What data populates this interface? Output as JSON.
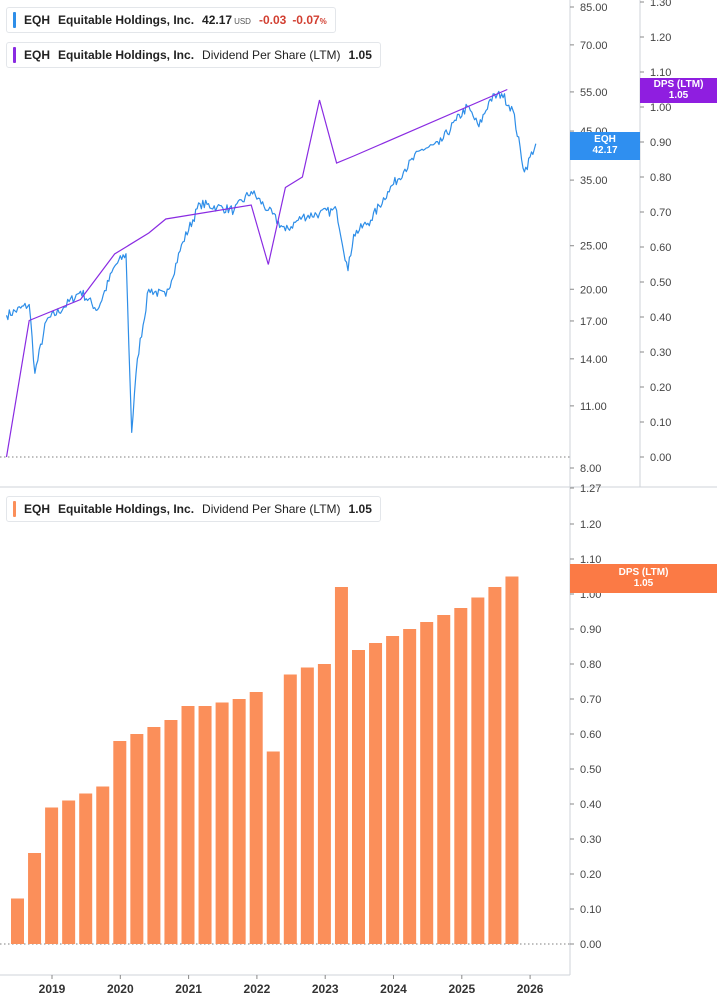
{
  "colors": {
    "price": "#2e8ee8",
    "dps_line": "#8a2be2",
    "bars": "#fb8f5a",
    "price_tag": "#2f8ff0",
    "dps_tag_top": "#8f1ee0",
    "dps_tag_bottom": "#fb7a45"
  },
  "legend_price": {
    "ticker": "EQH",
    "name": "Equitable Holdings, Inc.",
    "price": "42.17",
    "currency": "USD",
    "change": "-0.03",
    "change_pct": "-0.07",
    "pct_symbol": "%"
  },
  "legend_dps_top": {
    "ticker": "EQH",
    "name": "Equitable Holdings, Inc.",
    "series": "Dividend Per Share (LTM)",
    "value": "1.05"
  },
  "legend_dps_bottom": {
    "ticker": "EQH",
    "name": "Equitable Holdings, Inc.",
    "series": "Dividend Per Share (LTM)",
    "value": "1.05"
  },
  "tags": {
    "price_ticker": "EQH",
    "price_value": "42.17",
    "dps_top_label": "DPS (LTM)",
    "dps_top_value": "1.05",
    "dps_bottom_label": "DPS (LTM)",
    "dps_bottom_value": "1.05"
  },
  "chart_data": [
    {
      "type": "line",
      "title": "EQH Equitable Holdings, Inc.",
      "scale": "log",
      "ylim": [
        8,
        85
      ],
      "y_ticks": [
        "85.00",
        "70.00",
        "55.00",
        "45.00",
        "35.00",
        "25.00",
        "20.00",
        "17.00",
        "14.00",
        "11.00",
        "8.00"
      ],
      "x_ticks": [
        "2019",
        "2020",
        "2021",
        "2022",
        "2023",
        "2024",
        "2025",
        "2026"
      ],
      "series": [
        {
          "name": "EQH",
          "x": [
            "2018-05",
            "2018-09",
            "2018-10",
            "2018-12",
            "2019-03",
            "2019-06",
            "2019-09",
            "2019-12",
            "2020-02",
            "2020-03",
            "2020-04",
            "2020-06",
            "2020-09",
            "2020-12",
            "2021-03",
            "2021-06",
            "2021-09",
            "2021-12",
            "2022-03",
            "2022-06",
            "2022-09",
            "2022-12",
            "2023-03",
            "2023-05",
            "2023-06",
            "2023-09",
            "2023-12",
            "2024-03",
            "2024-06",
            "2024-09",
            "2024-12",
            "2025-02",
            "2025-04",
            "2025-06",
            "2025-08",
            "2025-10",
            "2025-12",
            "2026-02"
          ],
          "y": [
            17.5,
            18.5,
            13.0,
            17.0,
            18.2,
            19.8,
            18.0,
            22.5,
            24.0,
            9.6,
            14.0,
            20.0,
            19.3,
            25.5,
            31.0,
            30.5,
            30.0,
            33.0,
            30.0,
            27.0,
            29.0,
            29.5,
            30.0,
            22.0,
            26.5,
            28.5,
            33.0,
            37.0,
            41.0,
            42.0,
            47.5,
            51.0,
            46.0,
            53.0,
            54.5,
            50.0,
            36.5,
            42.17
          ]
        }
      ],
      "secondary_axis": {
        "ylim": [
          0.0,
          1.3
        ],
        "y_ticks": [
          "1.30",
          "1.20",
          "1.10",
          "1.00",
          "0.90",
          "0.80",
          "0.70",
          "0.60",
          "0.50",
          "0.40",
          "0.30",
          "0.20",
          "0.10",
          "0.00"
        ],
        "series": [
          {
            "name": "Dividend Per Share (LTM)",
            "x": [
              "2018-05",
              "2018-09",
              "2019-06",
              "2019-12",
              "2020-06",
              "2020-09",
              "2021-12",
              "2022-03",
              "2022-06",
              "2022-09",
              "2022-12",
              "2023-03",
              "2023-06",
              "2025-09"
            ],
            "y": [
              0.0,
              0.39,
              0.45,
              0.58,
              0.64,
              0.68,
              0.72,
              0.55,
              0.77,
              0.8,
              1.02,
              0.84,
              0.86,
              1.05
            ]
          }
        ]
      }
    },
    {
      "type": "bar",
      "title": "EQH Equitable Holdings, Inc. Dividend Per Share (LTM)",
      "ylim": [
        0.0,
        1.27
      ],
      "y_ticks": [
        "1.27",
        "1.20",
        "1.10",
        "1.00",
        "0.90",
        "0.80",
        "0.70",
        "0.60",
        "0.50",
        "0.40",
        "0.30",
        "0.20",
        "0.10",
        "0.00"
      ],
      "x_ticks": [
        "2019",
        "2020",
        "2021",
        "2022",
        "2023",
        "2024",
        "2025",
        "2026"
      ],
      "categories": [
        "Q2 2018",
        "Q3 2018",
        "Q4 2018",
        "Q1 2019",
        "Q2 2019",
        "Q3 2019",
        "Q4 2019",
        "Q1 2020",
        "Q2 2020",
        "Q3 2020",
        "Q4 2020",
        "Q1 2021",
        "Q2 2021",
        "Q3 2021",
        "Q4 2021",
        "Q1 2022",
        "Q2 2022",
        "Q3 2022",
        "Q4 2022",
        "Q1 2023",
        "Q2 2023",
        "Q3 2023",
        "Q4 2023",
        "Q1 2024",
        "Q2 2024",
        "Q3 2024",
        "Q4 2024",
        "Q1 2025",
        "Q2 2025",
        "Q3 2025"
      ],
      "values": [
        0.13,
        0.26,
        0.39,
        0.41,
        0.43,
        0.45,
        0.58,
        0.6,
        0.62,
        0.64,
        0.68,
        0.68,
        0.69,
        0.7,
        0.72,
        0.55,
        0.77,
        0.79,
        0.8,
        1.02,
        0.84,
        0.86,
        0.88,
        0.9,
        0.92,
        0.94,
        0.96,
        0.99,
        1.02,
        1.05
      ],
      "series_name": "Dividend Per Share (LTM)"
    }
  ]
}
